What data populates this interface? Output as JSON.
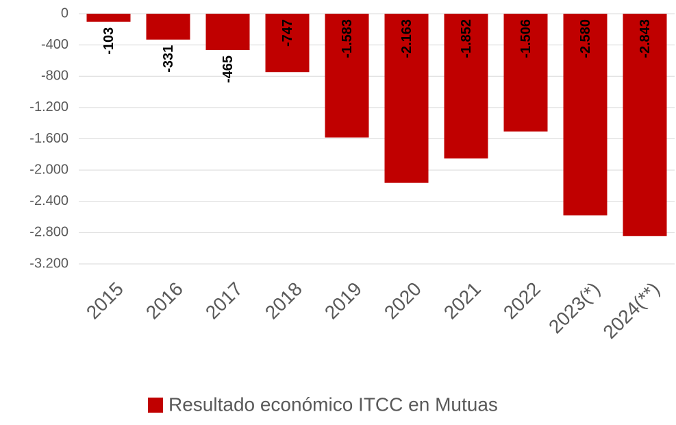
{
  "chart_data": {
    "type": "bar",
    "categories": [
      "2015",
      "2016",
      "2017",
      "2018",
      "2019",
      "2020",
      "2021",
      "2022",
      "2023(*)",
      "2024(**)"
    ],
    "series": [
      {
        "name": "Resultado económico ITCC en Mutuas",
        "color": "#c00000",
        "values": [
          -103,
          -331,
          -465,
          -747,
          -1583,
          -2163,
          -1852,
          -1506,
          -2580,
          -2843
        ],
        "value_labels": [
          "-103",
          "-331",
          "-465",
          "-747",
          "-1.583",
          "-2.163",
          "-1.852",
          "-1.506",
          "-2.580",
          "-2.843"
        ]
      }
    ],
    "ylim": [
      -3200,
      0
    ],
    "yticks": [
      0,
      -400,
      -800,
      {
        "value": -1200,
        "label": "-1.200"
      },
      {
        "value": -1600,
        "label": "-1.600"
      },
      {
        "value": -2000,
        "label": "-2.000"
      },
      {
        "value": -2400,
        "label": "-2.400"
      },
      {
        "value": -2800,
        "label": "-2.800"
      },
      {
        "value": -3200,
        "label": "-3.200"
      }
    ],
    "grid": true,
    "legend": "bottom"
  }
}
